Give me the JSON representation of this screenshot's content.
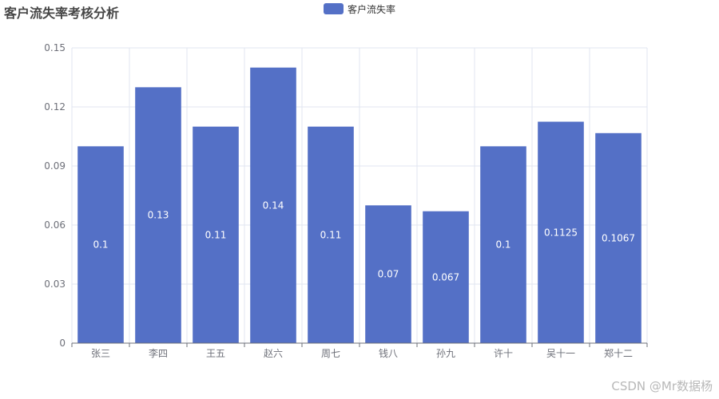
{
  "chart_data": {
    "type": "bar",
    "title": "客户流失率考核分析",
    "legend": [
      "客户流失率"
    ],
    "legend_position": "top-center",
    "categories": [
      "张三",
      "李四",
      "王五",
      "赵六",
      "周七",
      "钱八",
      "孙九",
      "许十",
      "吴十一",
      "郑十二"
    ],
    "series": [
      {
        "name": "客户流失率",
        "values": [
          0.1,
          0.13,
          0.11,
          0.14,
          0.11,
          0.07,
          0.067,
          0.1,
          0.1125,
          0.1067
        ],
        "labels": [
          "0.1",
          "0.13",
          "0.11",
          "0.14",
          "0.11",
          "0.07",
          "0.067",
          "0.1",
          "0.1125",
          "0.1067"
        ]
      }
    ],
    "ylim": [
      0,
      0.15
    ],
    "yticks": [
      0,
      0.03,
      0.06,
      0.09,
      0.12,
      0.15
    ],
    "ytick_labels": [
      "0",
      "0.03",
      "0.06",
      "0.09",
      "0.12",
      "0.15"
    ],
    "grid": true,
    "bar_color": "#5470c6",
    "label_color": "#ffffff",
    "axis_color": "#6e7079",
    "grid_color": "#e0e6f1"
  },
  "watermark": "CSDN @Mr数据杨"
}
